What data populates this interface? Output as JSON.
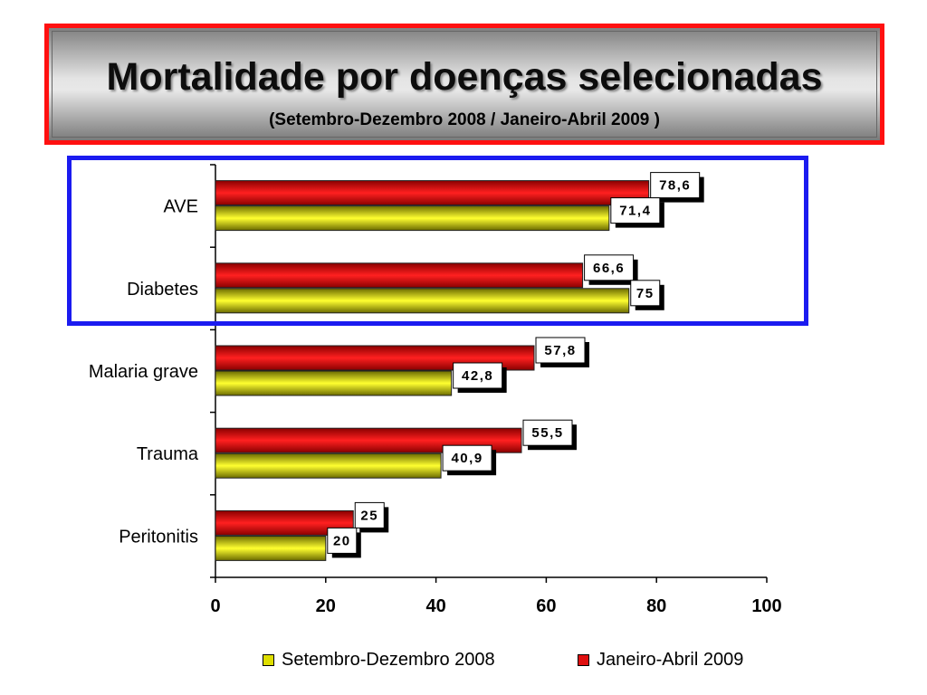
{
  "title": "Mortalidade por doenças selecionadas",
  "subtitle": "(Setembro-Dezembro 2008 / Janeiro-Abril 2009 )",
  "colors": {
    "series_sep": "#c8c800",
    "series_jan": "#e01010",
    "highlight": "#1b1bf0",
    "title_border": "#ff1010"
  },
  "chart_data": {
    "type": "bar",
    "orientation": "horizontal",
    "categories": [
      "AVE",
      "Diabetes",
      "Malaria grave",
      "Trauma",
      "Peritonitis"
    ],
    "series": [
      {
        "name": "Setembro-Dezembro 2008",
        "values": [
          71.4,
          75,
          42.8,
          40.9,
          20
        ],
        "labels": [
          "71,4",
          "75",
          "42,8",
          "40,9",
          "20"
        ]
      },
      {
        "name": "Janeiro-Abril 2009",
        "values": [
          78.6,
          66.6,
          57.8,
          55.5,
          25
        ],
        "labels": [
          "78,6",
          "66,6",
          "57,8",
          "55,5",
          "25"
        ]
      }
    ],
    "xlim": [
      0,
      100
    ],
    "xticks": [
      "0",
      "20",
      "40",
      "60",
      "80",
      "100"
    ],
    "xtick_values": [
      0,
      20,
      40,
      60,
      80,
      100
    ],
    "xlabel": "",
    "ylabel": "",
    "grid": false,
    "legend_position": "bottom",
    "highlighted_categories": [
      "AVE",
      "Diabetes"
    ]
  }
}
